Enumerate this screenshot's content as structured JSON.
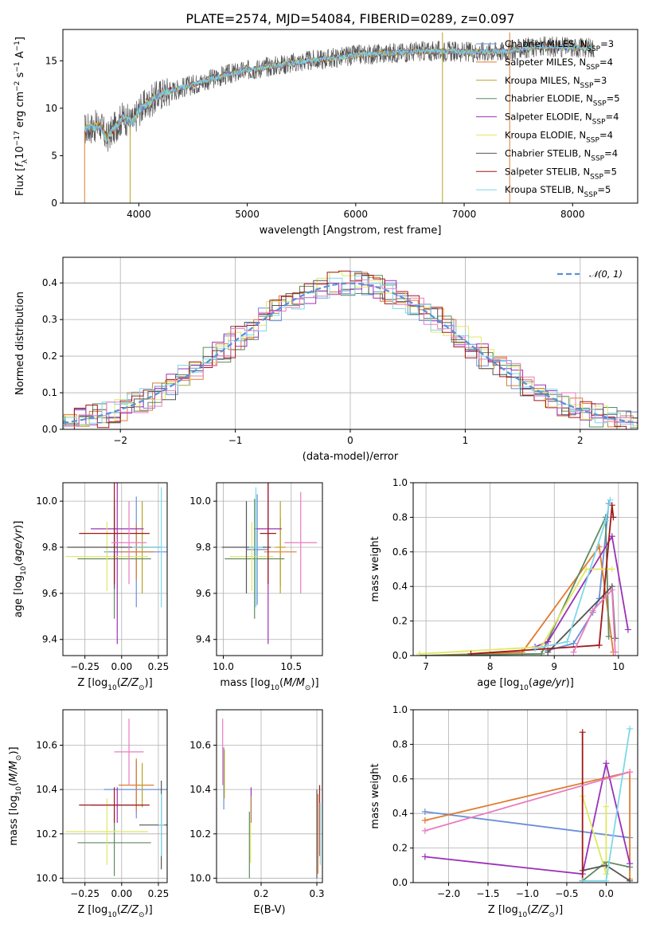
{
  "figure": {
    "title": "PLATE=2574, MJD=54084, FIBERID=0289, z=0.097"
  },
  "series_colors": {
    "Chabrier MILES": "#6a8fd8",
    "Salpeter MILES": "#e07b2e",
    "Kroupa MILES": "#b8a028",
    "Chabrier ELODIE": "#5f8a5f",
    "Salpeter ELODIE": "#9b30b8",
    "Kroupa ELODIE": "#e0e860",
    "Chabrier STELIB": "#555555",
    "Salpeter STELIB": "#a01818",
    "Kroupa STELIB": "#7dd8e8",
    "extra_pink": "#e87cc0"
  },
  "chart_data": [
    {
      "type": "line",
      "panel": "spectrum",
      "title": "PLATE=2574, MJD=54084, FIBERID=0289, z=0.097",
      "xlabel": "wavelength [Angstrom, rest frame]",
      "ylabel": "Flux [f_λ10^-17 erg cm^-2 s^-1 A^-1]",
      "xlim": [
        3300,
        8600
      ],
      "ylim": [
        0,
        18.3
      ],
      "xticks": [
        4000,
        5000,
        6000,
        7000,
        8000
      ],
      "yticks": [
        0,
        5,
        10,
        15
      ],
      "grid": false,
      "legend_position": "top-right",
      "legend": [
        "Chabrier MILES, N_SSP=3",
        "Salpeter MILES, N_SSP=4",
        "Kroupa MILES, N_SSP=3",
        "Chabrier ELODIE, N_SSP=5",
        "Salpeter ELODIE, N_SSP=4",
        "Kroupa ELODIE, N_SSP=4",
        "Chabrier STELIB, N_SSP=4",
        "Salpeter STELIB, N_SSP=5",
        "Kroupa STELIB, N_SSP=5"
      ],
      "continuum": {
        "x": [
          3500,
          3650,
          3700,
          3850,
          3950,
          4000,
          4200,
          4500,
          4800,
          5000,
          5200,
          5500,
          5800,
          6000,
          6300,
          6600,
          6900,
          7000,
          7200,
          7400,
          7600,
          7800,
          8000,
          8200
        ],
        "y": [
          7.8,
          8.2,
          6.8,
          9.0,
          8.5,
          9.8,
          11.5,
          12.5,
          13.5,
          14.0,
          14.4,
          14.9,
          15.3,
          15.6,
          15.8,
          16.0,
          16.0,
          15.9,
          16.0,
          16.0,
          16.4,
          16.5,
          16.4,
          16.4
        ]
      },
      "data_cutoffs": {
        "blue_edge_x": 3500,
        "drop_x": [
          3920,
          6800,
          7420
        ]
      }
    },
    {
      "type": "line",
      "panel": "residuals",
      "xlabel": "(data-model)/error",
      "ylabel": "Normed distribution",
      "xlim": [
        -2.5,
        2.5
      ],
      "ylim": [
        0,
        0.47
      ],
      "xticks": [
        -2,
        -1,
        0,
        1,
        2
      ],
      "yticks": [
        0.0,
        0.1,
        0.2,
        0.3,
        0.4
      ],
      "grid": true,
      "legend_position": "top-right",
      "legend": [
        "N(0,1)"
      ],
      "gaussian": {
        "mean": 0,
        "sigma": 1
      }
    },
    {
      "type": "scatter",
      "panel": "age_vs_Z",
      "xlabel": "Z [log10(Z/Z☉)]",
      "ylabel": "age [log10(age/yr)]",
      "xlim": [
        -0.4,
        0.31
      ],
      "ylim": [
        9.33,
        10.08
      ],
      "xticks": [
        -0.25,
        0.0,
        0.25
      ],
      "yticks": [
        9.4,
        9.6,
        9.8,
        10.0
      ],
      "grid": true,
      "errorbars": [
        {
          "series": "Chabrier MILES",
          "x": 0.1,
          "y": 9.78,
          "xerr": 0.22,
          "yerr": 0.24
        },
        {
          "series": "Salpeter MILES",
          "x": 0.1,
          "y": 9.78,
          "xerr": 0.12,
          "yerr": 0.12
        },
        {
          "series": "Kroupa MILES",
          "x": 0.14,
          "y": 9.8,
          "xerr": 0.04,
          "yerr": 0.2
        },
        {
          "series": "Chabrier ELODIE",
          "x": -0.05,
          "y": 9.75,
          "xerr": 0.25,
          "yerr": 0.26
        },
        {
          "series": "Salpeter ELODIE",
          "x": -0.03,
          "y": 9.88,
          "xerr": 0.18,
          "yerr": 0.5
        },
        {
          "series": "Kroupa ELODIE",
          "x": -0.1,
          "y": 9.76,
          "xerr": 0.28,
          "yerr": 0.15
        },
        {
          "series": "Chabrier STELIB",
          "x": -0.05,
          "y": 9.8,
          "xerr": 0.32,
          "yerr": 0.18
        },
        {
          "series": "Salpeter STELIB",
          "x": -0.05,
          "y": 9.86,
          "xerr": 0.24,
          "yerr": 0.22
        },
        {
          "series": "Kroupa STELIB",
          "x": 0.27,
          "y": 9.8,
          "xerr": 0.2,
          "yerr": 0.26
        },
        {
          "series": "extra_pink",
          "x": 0.05,
          "y": 9.82,
          "xerr": 0.12,
          "yerr": 0.18
        }
      ]
    },
    {
      "type": "scatter",
      "panel": "age_vs_mass",
      "xlabel": "mass [log10(M/M☉)]",
      "ylabel": "",
      "xlim": [
        9.95,
        10.73
      ],
      "ylim": [
        9.33,
        10.08
      ],
      "xticks": [
        10.0,
        10.5
      ],
      "yticks": [
        9.4,
        9.6,
        9.8,
        10.0
      ],
      "grid": true,
      "errorbars": [
        {
          "series": "Chabrier MILES",
          "x": 10.25,
          "y": 9.79,
          "xerr": 0.08,
          "yerr": 0.24
        },
        {
          "series": "Salpeter MILES",
          "x": 10.42,
          "y": 9.78,
          "xerr": 0.12,
          "yerr": 0.15
        },
        {
          "series": "Kroupa MILES",
          "x": 10.42,
          "y": 9.8,
          "xerr": 0.04,
          "yerr": 0.2
        },
        {
          "series": "Chabrier ELODIE",
          "x": 10.23,
          "y": 9.75,
          "xerr": 0.22,
          "yerr": 0.26
        },
        {
          "series": "Salpeter ELODIE",
          "x": 10.33,
          "y": 9.88,
          "xerr": 0.1,
          "yerr": 0.5
        },
        {
          "series": "Kroupa ELODIE",
          "x": 10.21,
          "y": 9.76,
          "xerr": 0.16,
          "yerr": 0.15
        },
        {
          "series": "Chabrier STELIB",
          "x": 10.17,
          "y": 9.8,
          "xerr": 0.18,
          "yerr": 0.2
        },
        {
          "series": "Salpeter STELIB",
          "x": 10.33,
          "y": 9.86,
          "xerr": 0.06,
          "yerr": 0.22
        },
        {
          "series": "Kroupa STELIB",
          "x": 10.24,
          "y": 9.8,
          "xerr": 0.05,
          "yerr": 0.26
        },
        {
          "series": "extra_pink",
          "x": 10.57,
          "y": 9.82,
          "xerr": 0.12,
          "yerr": 0.22
        }
      ]
    },
    {
      "type": "line",
      "panel": "weight_vs_age",
      "xlabel": "age [log10(age/yr)]",
      "ylabel": "mass weight",
      "xlim": [
        6.8,
        10.3
      ],
      "ylim": [
        0,
        1
      ],
      "xticks": [
        7,
        8,
        9,
        10
      ],
      "yticks": [
        0.0,
        0.2,
        0.4,
        0.6,
        0.8,
        1.0
      ],
      "grid": true,
      "series": [
        {
          "name": "Chabrier MILES",
          "x": [
            8.9,
            9.3,
            9.6,
            9.7,
            9.85
          ],
          "y": [
            0.03,
            0.07,
            0.25,
            0.33,
            0.88
          ]
        },
        {
          "name": "Salpeter MILES",
          "x": [
            7.0,
            8.5,
            9.7,
            9.92
          ],
          "y": [
            0.0,
            0.02,
            0.63,
            0.02
          ]
        },
        {
          "name": "Chabrier ELODIE",
          "x": [
            6.9,
            8.8,
            9.8,
            9.85
          ],
          "y": [
            0.0,
            0.01,
            0.8,
            0.11
          ]
        },
        {
          "name": "Salpeter ELODIE",
          "x": [
            8.7,
            8.9,
            9.9,
            10.15
          ],
          "y": [
            0.05,
            0.08,
            0.69,
            0.15
          ]
        },
        {
          "name": "Kroupa ELODIE",
          "x": [
            6.9,
            8.8,
            9.5,
            9.9
          ],
          "y": [
            0.01,
            0.05,
            0.5,
            0.5
          ]
        },
        {
          "name": "Chabrier STELIB",
          "x": [
            8.9,
            9.9,
            9.95
          ],
          "y": [
            0.02,
            0.4,
            0.1
          ]
        },
        {
          "name": "Salpeter STELIB",
          "x": [
            7.7,
            9.7,
            9.9,
            9.92
          ],
          "y": [
            0.01,
            0.06,
            0.87,
            0.8
          ]
        },
        {
          "name": "Kroupa STELIB",
          "x": [
            8.7,
            9.2,
            9.8,
            9.87
          ],
          "y": [
            0.04,
            0.08,
            0.78,
            0.9
          ]
        },
        {
          "name": "extra_pink",
          "x": [
            9.3,
            9.6,
            9.9,
            9.95
          ],
          "y": [
            0.02,
            0.26,
            0.38,
            0.02
          ]
        }
      ]
    },
    {
      "type": "scatter",
      "panel": "mass_vs_Z",
      "xlabel": "Z [log10(Z/Z☉)]",
      "ylabel": "mass [log10(M/M☉)]",
      "xlim": [
        -0.4,
        0.31
      ],
      "ylim": [
        9.98,
        10.76
      ],
      "xticks": [
        -0.25,
        0.0,
        0.25
      ],
      "yticks": [
        10.0,
        10.2,
        10.4,
        10.6
      ],
      "grid": true,
      "errorbars": [
        {
          "series": "Chabrier MILES",
          "x": 0.1,
          "y": 10.4,
          "xerr": 0.22,
          "yerr": 0.13
        },
        {
          "series": "Salpeter MILES",
          "x": 0.1,
          "y": 10.42,
          "xerr": 0.12,
          "yerr": 0.12
        },
        {
          "series": "Kroupa MILES",
          "x": 0.14,
          "y": 10.42,
          "xerr": 0.02,
          "yerr": 0.1
        },
        {
          "series": "Chabrier ELODIE",
          "x": -0.05,
          "y": 10.16,
          "xerr": 0.25,
          "yerr": 0.15
        },
        {
          "series": "Salpeter ELODIE",
          "x": -0.03,
          "y": 10.33,
          "xerr": 0.18,
          "yerr": 0.08
        },
        {
          "series": "Kroupa ELODIE",
          "x": -0.1,
          "y": 10.21,
          "xerr": 0.28,
          "yerr": 0.15
        },
        {
          "series": "Chabrier STELIB",
          "x": 0.27,
          "y": 10.24,
          "xerr": 0.15,
          "yerr": 0.2
        },
        {
          "series": "Salpeter STELIB",
          "x": -0.05,
          "y": 10.33,
          "xerr": 0.24,
          "yerr": 0.08
        },
        {
          "series": "Kroupa STELIB",
          "x": 0.27,
          "y": 10.24,
          "xerr": 0.02,
          "yerr": 0.14
        },
        {
          "series": "extra_pink",
          "x": 0.05,
          "y": 10.57,
          "xerr": 0.1,
          "yerr": 0.15
        }
      ]
    },
    {
      "type": "scatter",
      "panel": "mass_vs_EBV",
      "xlabel": "E(B-V)",
      "ylabel": "",
      "xlim": [
        0.12,
        0.31
      ],
      "ylim": [
        9.98,
        10.76
      ],
      "xticks": [
        0.2,
        0.3
      ],
      "yticks": [
        10.0,
        10.2,
        10.4,
        10.6
      ],
      "grid": true,
      "errorbars": [
        {
          "series": "Chabrier MILES",
          "x": 0.133,
          "y": 10.45,
          "xerr": 0.0,
          "yerr": 0.14
        },
        {
          "series": "Salpeter MILES",
          "x": 0.302,
          "y": 10.2,
          "xerr": 0.0,
          "yerr": 0.18
        },
        {
          "series": "Kroupa MILES",
          "x": 0.134,
          "y": 10.47,
          "xerr": 0.0,
          "yerr": 0.11
        },
        {
          "series": "Chabrier ELODIE",
          "x": 0.179,
          "y": 10.15,
          "xerr": 0.0,
          "yerr": 0.15
        },
        {
          "series": "Salpeter ELODIE",
          "x": 0.182,
          "y": 10.33,
          "xerr": 0.0,
          "yerr": 0.08
        },
        {
          "series": "Kroupa ELODIE",
          "x": 0.181,
          "y": 10.22,
          "xerr": 0.0,
          "yerr": 0.15
        },
        {
          "series": "Chabrier STELIB",
          "x": 0.3,
          "y": 10.2,
          "xerr": 0.0,
          "yerr": 0.2
        },
        {
          "series": "Salpeter STELIB",
          "x": 0.305,
          "y": 10.26,
          "xerr": 0.0,
          "yerr": 0.16
        },
        {
          "series": "Kroupa STELIB",
          "x": 0.306,
          "y": 10.2,
          "xerr": 0.0,
          "yerr": 0.14
        },
        {
          "series": "extra_pink",
          "x": 0.131,
          "y": 10.57,
          "xerr": 0.0,
          "yerr": 0.15
        }
      ]
    },
    {
      "type": "line",
      "panel": "weight_vs_Z",
      "xlabel": "Z [log10(Z/Z☉)]",
      "ylabel": "mass weight",
      "xlim": [
        -2.45,
        0.4
      ],
      "ylim": [
        0,
        1
      ],
      "xticks": [
        -2.0,
        -1.5,
        -1.0,
        -0.5,
        0.0
      ],
      "yticks": [
        0.0,
        0.2,
        0.4,
        0.6,
        0.8,
        1.0
      ],
      "grid": true,
      "series": [
        {
          "name": "Chabrier MILES",
          "x": [
            -2.3,
            0.3
          ],
          "y": [
            0.41,
            0.26
          ]
        },
        {
          "name": "Salpeter MILES",
          "x": [
            -2.3,
            0.3,
            0.3
          ],
          "y": [
            0.36,
            0.64,
            0.02
          ]
        },
        {
          "name": "Chabrier ELODIE",
          "x": [
            -0.3,
            0.0,
            0.3
          ],
          "y": [
            0.01,
            0.12,
            0.09
          ]
        },
        {
          "name": "Salpeter ELODIE",
          "x": [
            -2.3,
            -0.3,
            0.0,
            0.3
          ],
          "y": [
            0.15,
            0.05,
            0.69,
            0.11
          ]
        },
        {
          "name": "Kroupa ELODIE",
          "x": [
            -0.3,
            0.0,
            0.0
          ],
          "y": [
            0.5,
            0.05,
            0.44
          ]
        },
        {
          "name": "Chabrier STELIB",
          "x": [
            -0.3,
            0.0,
            0.3
          ],
          "y": [
            0.07,
            0.1,
            0.01
          ]
        },
        {
          "name": "Salpeter STELIB",
          "x": [
            -0.3,
            -0.3
          ],
          "y": [
            0.87,
            0.01
          ]
        },
        {
          "name": "Kroupa STELIB",
          "x": [
            -0.3,
            0.0,
            0.3
          ],
          "y": [
            0.01,
            0.01,
            0.89
          ]
        },
        {
          "name": "extra_pink",
          "x": [
            -2.3,
            0.3
          ],
          "y": [
            0.3,
            0.64
          ]
        }
      ]
    }
  ]
}
